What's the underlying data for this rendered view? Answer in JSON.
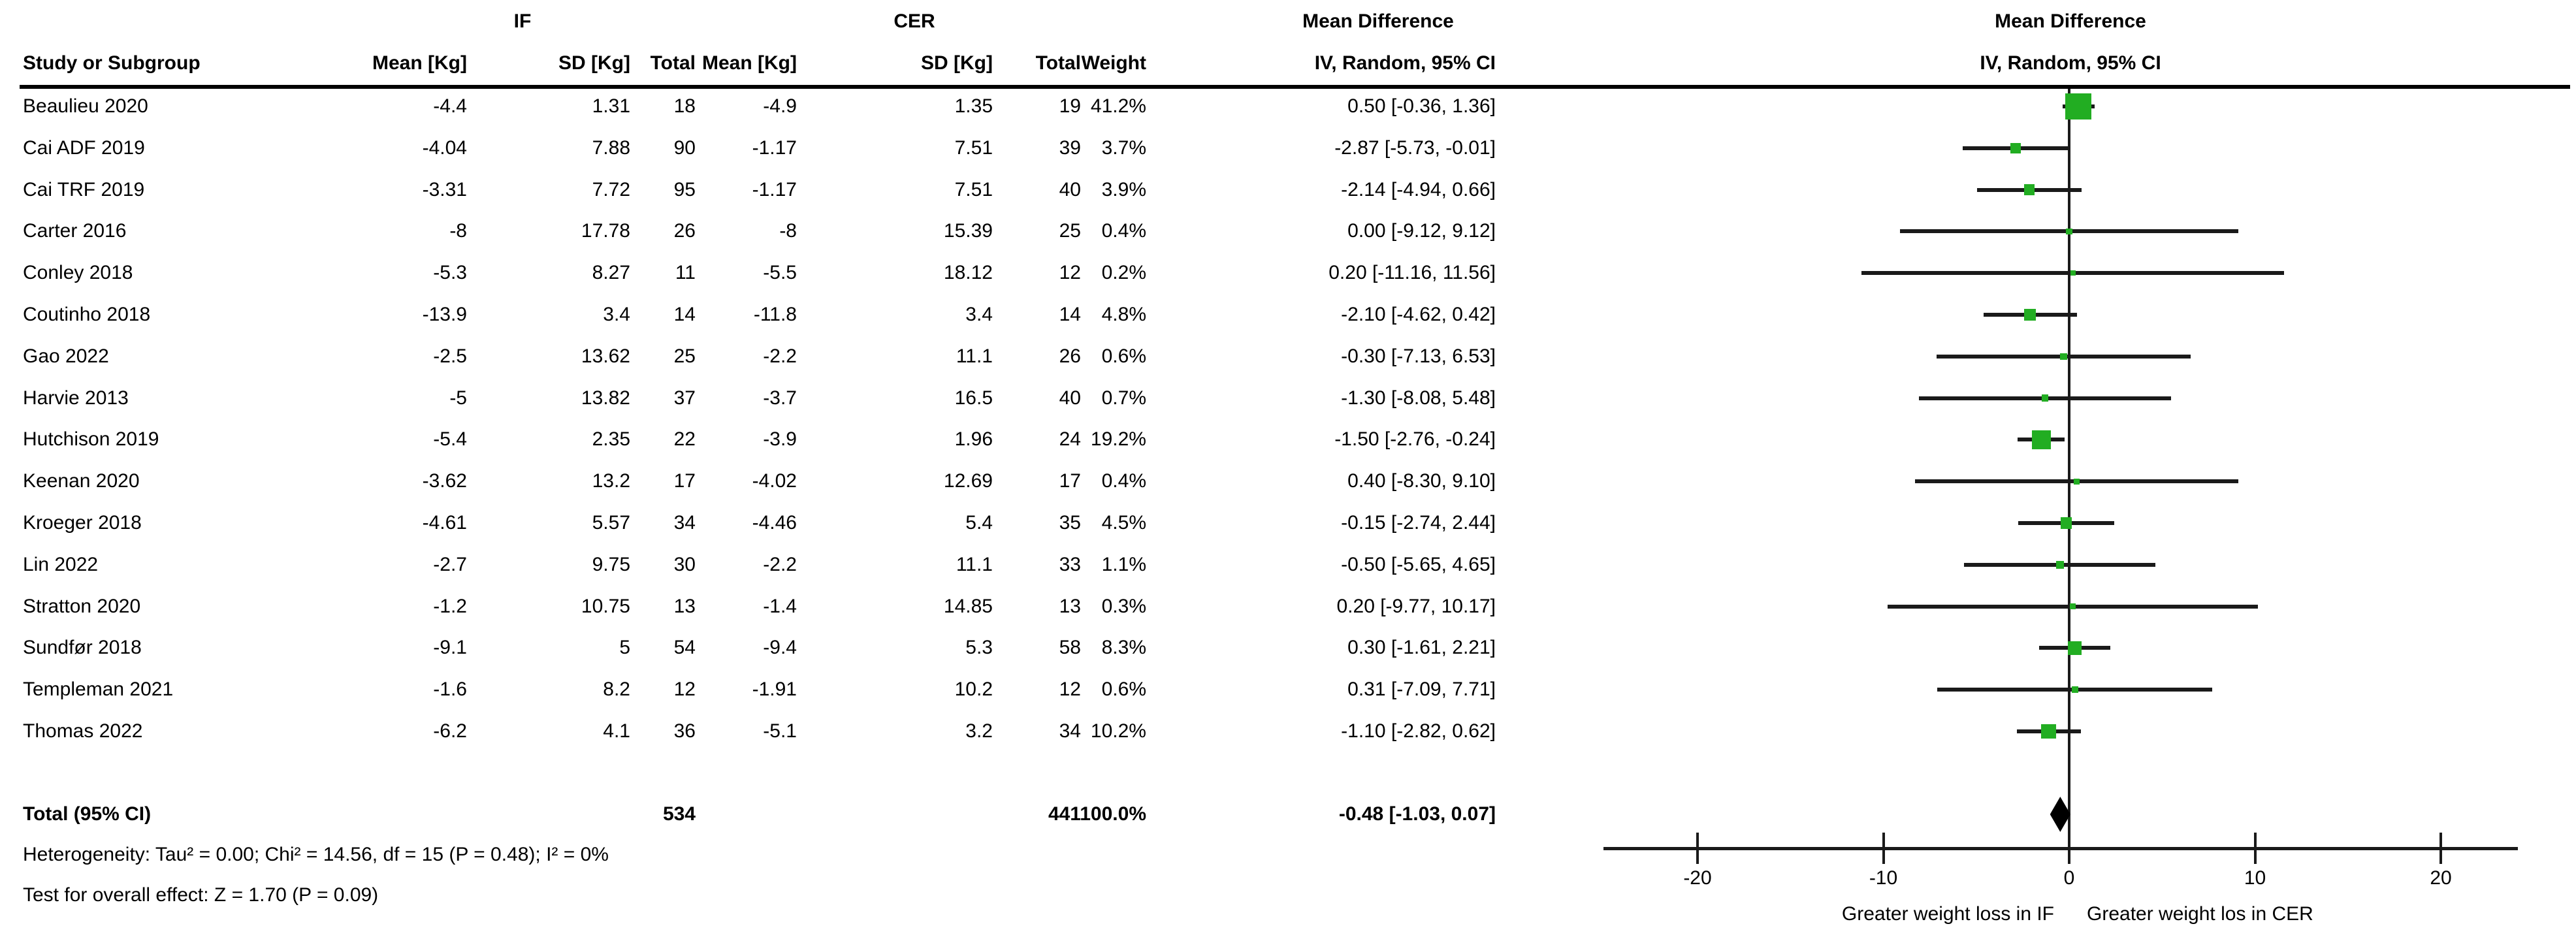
{
  "header": {
    "group_if": "IF",
    "group_cer": "CER",
    "group_md_text": "Mean Difference",
    "group_md_plot": "Mean Difference",
    "col_study": "Study or Subgroup",
    "col_if_mean": "Mean [Kg]",
    "col_if_sd": "SD [Kg]",
    "col_if_total": "Total",
    "col_cer_mean": "Mean [Kg]",
    "col_cer_sd": "SD [Kg]",
    "col_cer_total": "Total",
    "col_weight": "Weight",
    "col_ci_text": "IV, Random, 95% CI",
    "col_ci_plot": "IV, Random, 95% CI"
  },
  "chart_data": {
    "type": "forest",
    "effect_measure": "Mean Difference (IV, Random, 95% CI)",
    "x_ticks": [
      -20,
      -10,
      0,
      10,
      20
    ],
    "x_range": [
      -25,
      24
    ],
    "axis_labels": {
      "left": "Greater weight loss in IF",
      "right": "Greater weight los in CER"
    },
    "colors": {
      "marker": "#22AD22",
      "diamond": "#000000",
      "line": "#1a1a1a",
      "text": "#000000"
    },
    "studies": [
      {
        "name": "Beaulieu 2020",
        "if_mean": "-4.4",
        "if_sd": "1.31",
        "if_total": "18",
        "cer_mean": "-4.9",
        "cer_sd": "1.35",
        "cer_total": "19",
        "weight": "41.2%",
        "md_ci_text": "0.50 [-0.36, 1.36]",
        "md": 0.5,
        "ci_low": -0.36,
        "ci_high": 1.36,
        "weight_pct": 41.2
      },
      {
        "name": "Cai ADF 2019",
        "if_mean": "-4.04",
        "if_sd": "7.88",
        "if_total": "90",
        "cer_mean": "-1.17",
        "cer_sd": "7.51",
        "cer_total": "39",
        "weight": "3.7%",
        "md_ci_text": "-2.87 [-5.73, -0.01]",
        "md": -2.87,
        "ci_low": -5.73,
        "ci_high": -0.01,
        "weight_pct": 3.7
      },
      {
        "name": "Cai TRF 2019",
        "if_mean": "-3.31",
        "if_sd": "7.72",
        "if_total": "95",
        "cer_mean": "-1.17",
        "cer_sd": "7.51",
        "cer_total": "40",
        "weight": "3.9%",
        "md_ci_text": "-2.14 [-4.94, 0.66]",
        "md": -2.14,
        "ci_low": -4.94,
        "ci_high": 0.66,
        "weight_pct": 3.9
      },
      {
        "name": "Carter 2016",
        "if_mean": "-8",
        "if_sd": "17.78",
        "if_total": "26",
        "cer_mean": "-8",
        "cer_sd": "15.39",
        "cer_total": "25",
        "weight": "0.4%",
        "md_ci_text": "0.00 [-9.12, 9.12]",
        "md": 0.0,
        "ci_low": -9.12,
        "ci_high": 9.12,
        "weight_pct": 0.4
      },
      {
        "name": "Conley 2018",
        "if_mean": "-5.3",
        "if_sd": "8.27",
        "if_total": "11",
        "cer_mean": "-5.5",
        "cer_sd": "18.12",
        "cer_total": "12",
        "weight": "0.2%",
        "md_ci_text": "0.20 [-11.16, 11.56]",
        "md": 0.2,
        "ci_low": -11.16,
        "ci_high": 11.56,
        "weight_pct": 0.2
      },
      {
        "name": "Coutinho 2018",
        "if_mean": "-13.9",
        "if_sd": "3.4",
        "if_total": "14",
        "cer_mean": "-11.8",
        "cer_sd": "3.4",
        "cer_total": "14",
        "weight": "4.8%",
        "md_ci_text": "-2.10 [-4.62, 0.42]",
        "md": -2.1,
        "ci_low": -4.62,
        "ci_high": 0.42,
        "weight_pct": 4.8
      },
      {
        "name": "Gao 2022",
        "if_mean": "-2.5",
        "if_sd": "13.62",
        "if_total": "25",
        "cer_mean": "-2.2",
        "cer_sd": "11.1",
        "cer_total": "26",
        "weight": "0.6%",
        "md_ci_text": "-0.30 [-7.13, 6.53]",
        "md": -0.3,
        "ci_low": -7.13,
        "ci_high": 6.53,
        "weight_pct": 0.6
      },
      {
        "name": "Harvie 2013",
        "if_mean": "-5",
        "if_sd": "13.82",
        "if_total": "37",
        "cer_mean": "-3.7",
        "cer_sd": "16.5",
        "cer_total": "40",
        "weight": "0.7%",
        "md_ci_text": "-1.30 [-8.08, 5.48]",
        "md": -1.3,
        "ci_low": -8.08,
        "ci_high": 5.48,
        "weight_pct": 0.7
      },
      {
        "name": "Hutchison 2019",
        "if_mean": "-5.4",
        "if_sd": "2.35",
        "if_total": "22",
        "cer_mean": "-3.9",
        "cer_sd": "1.96",
        "cer_total": "24",
        "weight": "19.2%",
        "md_ci_text": "-1.50 [-2.76, -0.24]",
        "md": -1.5,
        "ci_low": -2.76,
        "ci_high": -0.24,
        "weight_pct": 19.2
      },
      {
        "name": "Keenan 2020",
        "if_mean": "-3.62",
        "if_sd": "13.2",
        "if_total": "17",
        "cer_mean": "-4.02",
        "cer_sd": "12.69",
        "cer_total": "17",
        "weight": "0.4%",
        "md_ci_text": "0.40 [-8.30, 9.10]",
        "md": 0.4,
        "ci_low": -8.3,
        "ci_high": 9.1,
        "weight_pct": 0.4
      },
      {
        "name": "Kroeger 2018",
        "if_mean": "-4.61",
        "if_sd": "5.57",
        "if_total": "34",
        "cer_mean": "-4.46",
        "cer_sd": "5.4",
        "cer_total": "35",
        "weight": "4.5%",
        "md_ci_text": "-0.15 [-2.74, 2.44]",
        "md": -0.15,
        "ci_low": -2.74,
        "ci_high": 2.44,
        "weight_pct": 4.5
      },
      {
        "name": "Lin 2022",
        "if_mean": "-2.7",
        "if_sd": "9.75",
        "if_total": "30",
        "cer_mean": "-2.2",
        "cer_sd": "11.1",
        "cer_total": "33",
        "weight": "1.1%",
        "md_ci_text": "-0.50 [-5.65, 4.65]",
        "md": -0.5,
        "ci_low": -5.65,
        "ci_high": 4.65,
        "weight_pct": 1.1
      },
      {
        "name": "Stratton 2020",
        "if_mean": "-1.2",
        "if_sd": "10.75",
        "if_total": "13",
        "cer_mean": "-1.4",
        "cer_sd": "14.85",
        "cer_total": "13",
        "weight": "0.3%",
        "md_ci_text": "0.20 [-9.77, 10.17]",
        "md": 0.2,
        "ci_low": -9.77,
        "ci_high": 10.17,
        "weight_pct": 0.3
      },
      {
        "name": "Sundfør 2018",
        "if_mean": "-9.1",
        "if_sd": "5",
        "if_total": "54",
        "cer_mean": "-9.4",
        "cer_sd": "5.3",
        "cer_total": "58",
        "weight": "8.3%",
        "md_ci_text": "0.30 [-1.61, 2.21]",
        "md": 0.3,
        "ci_low": -1.61,
        "ci_high": 2.21,
        "weight_pct": 8.3
      },
      {
        "name": "Templeman 2021",
        "if_mean": "-1.6",
        "if_sd": "8.2",
        "if_total": "12",
        "cer_mean": "-1.91",
        "cer_sd": "10.2",
        "cer_total": "12",
        "weight": "0.6%",
        "md_ci_text": "0.31 [-7.09, 7.71]",
        "md": 0.31,
        "ci_low": -7.09,
        "ci_high": 7.71,
        "weight_pct": 0.6
      },
      {
        "name": "Thomas 2022",
        "if_mean": "-6.2",
        "if_sd": "4.1",
        "if_total": "36",
        "cer_mean": "-5.1",
        "cer_sd": "3.2",
        "cer_total": "34",
        "weight": "10.2%",
        "md_ci_text": "-1.10 [-2.82, 0.62]",
        "md": -1.1,
        "ci_low": -2.82,
        "ci_high": 0.62,
        "weight_pct": 10.2
      }
    ],
    "total": {
      "label": "Total (95% CI)",
      "if_total": "534",
      "cer_total": "441",
      "weight": "100.0%",
      "md_ci_text": "-0.48 [-1.03, 0.07]",
      "md": -0.48,
      "ci_low": -1.03,
      "ci_high": 0.07
    }
  },
  "footer": {
    "heterogeneity": "Heterogeneity: Tau² = 0.00; Chi² = 14.56, df = 15 (P = 0.48); I² = 0%",
    "overall_effect": "Test for overall effect: Z = 1.70 (P = 0.09)"
  }
}
